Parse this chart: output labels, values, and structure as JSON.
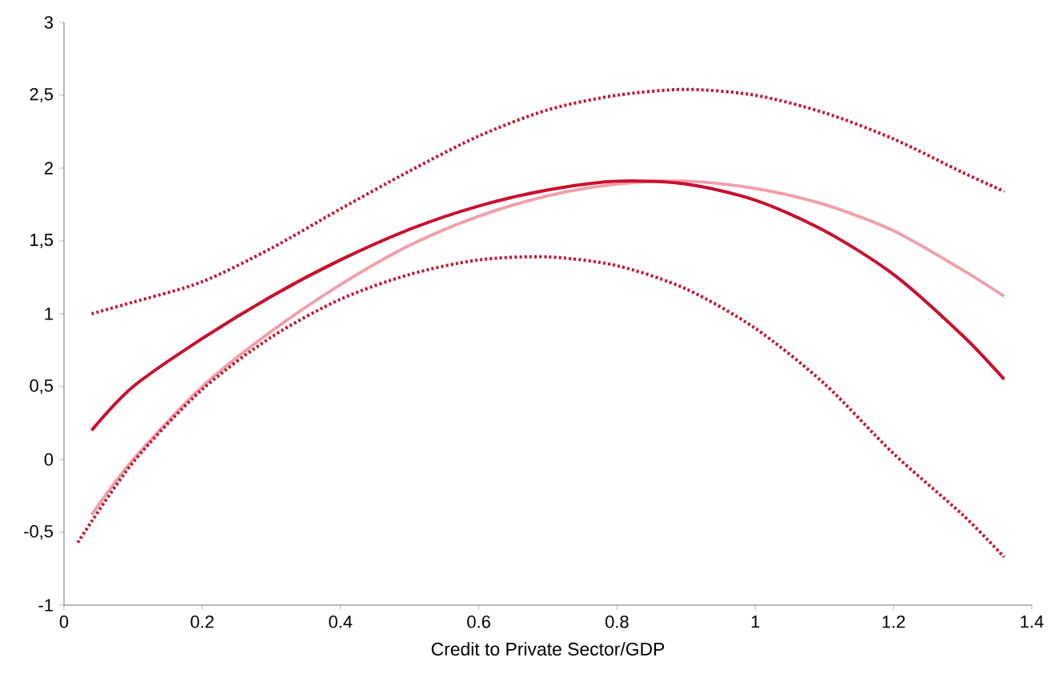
{
  "chart_data": {
    "type": "line",
    "xlabel": "Credit to Private Sector/GDP",
    "xlim": [
      0,
      1.4
    ],
    "ylim": [
      -1,
      3
    ],
    "xticks": [
      0,
      {
        "value": 0.2,
        "label": "0.2"
      },
      {
        "value": 0.4,
        "label": "0.4"
      },
      {
        "value": 0.6,
        "label": "0.6"
      },
      {
        "value": 0.8,
        "label": "0.8"
      },
      1,
      {
        "value": 1.2,
        "label": "1.2"
      },
      {
        "value": 1.4,
        "label": "1.4"
      }
    ],
    "yticks": [
      -1,
      {
        "value": -0.5,
        "label": "-0,5"
      },
      0,
      {
        "value": 0.5,
        "label": "0,5"
      },
      1,
      {
        "value": 1.5,
        "label": "1,5"
      },
      2,
      {
        "value": 2.5,
        "label": "2,5"
      },
      3
    ],
    "grid": false,
    "marker": "none",
    "series": [
      {
        "color": "#f0a0aa",
        "line_style": "solid",
        "x": [
          0.04,
          0.1,
          0.2,
          0.3,
          0.4,
          0.5,
          0.6,
          0.7,
          0.8,
          0.9,
          1.0,
          1.1,
          1.2,
          1.3,
          1.36
        ],
        "values": [
          -0.38,
          0.0,
          0.5,
          0.88,
          1.2,
          1.47,
          1.67,
          1.81,
          1.89,
          1.91,
          1.86,
          1.75,
          1.57,
          1.3,
          1.12
        ]
      },
      {
        "color": "#c8102e",
        "line_style": "solid",
        "x": [
          0.04,
          0.1,
          0.2,
          0.3,
          0.4,
          0.5,
          0.6,
          0.7,
          0.8,
          0.9,
          1.0,
          1.1,
          1.2,
          1.3,
          1.36
        ],
        "values": [
          0.2,
          0.5,
          0.83,
          1.12,
          1.37,
          1.58,
          1.74,
          1.85,
          1.91,
          1.89,
          1.78,
          1.57,
          1.27,
          0.85,
          0.55
        ]
      },
      {
        "color": "#c8102e",
        "line_style": "dotted",
        "x": [
          0.04,
          0.1,
          0.2,
          0.3,
          0.4,
          0.5,
          0.6,
          0.7,
          0.8,
          0.9,
          1.0,
          1.1,
          1.2,
          1.3,
          1.36
        ],
        "values": [
          1.0,
          1.08,
          1.22,
          1.45,
          1.72,
          1.98,
          2.22,
          2.4,
          2.5,
          2.54,
          2.5,
          2.38,
          2.2,
          1.97,
          1.84
        ]
      },
      {
        "color": "#c8102e",
        "line_style": "dotted",
        "x": [
          0.02,
          0.1,
          0.2,
          0.3,
          0.4,
          0.5,
          0.6,
          0.7,
          0.8,
          0.9,
          1.0,
          1.1,
          1.2,
          1.3,
          1.36
        ],
        "values": [
          -0.57,
          -0.02,
          0.48,
          0.84,
          1.1,
          1.27,
          1.37,
          1.39,
          1.33,
          1.17,
          0.9,
          0.52,
          0.04,
          -0.38,
          -0.67
        ]
      }
    ]
  }
}
